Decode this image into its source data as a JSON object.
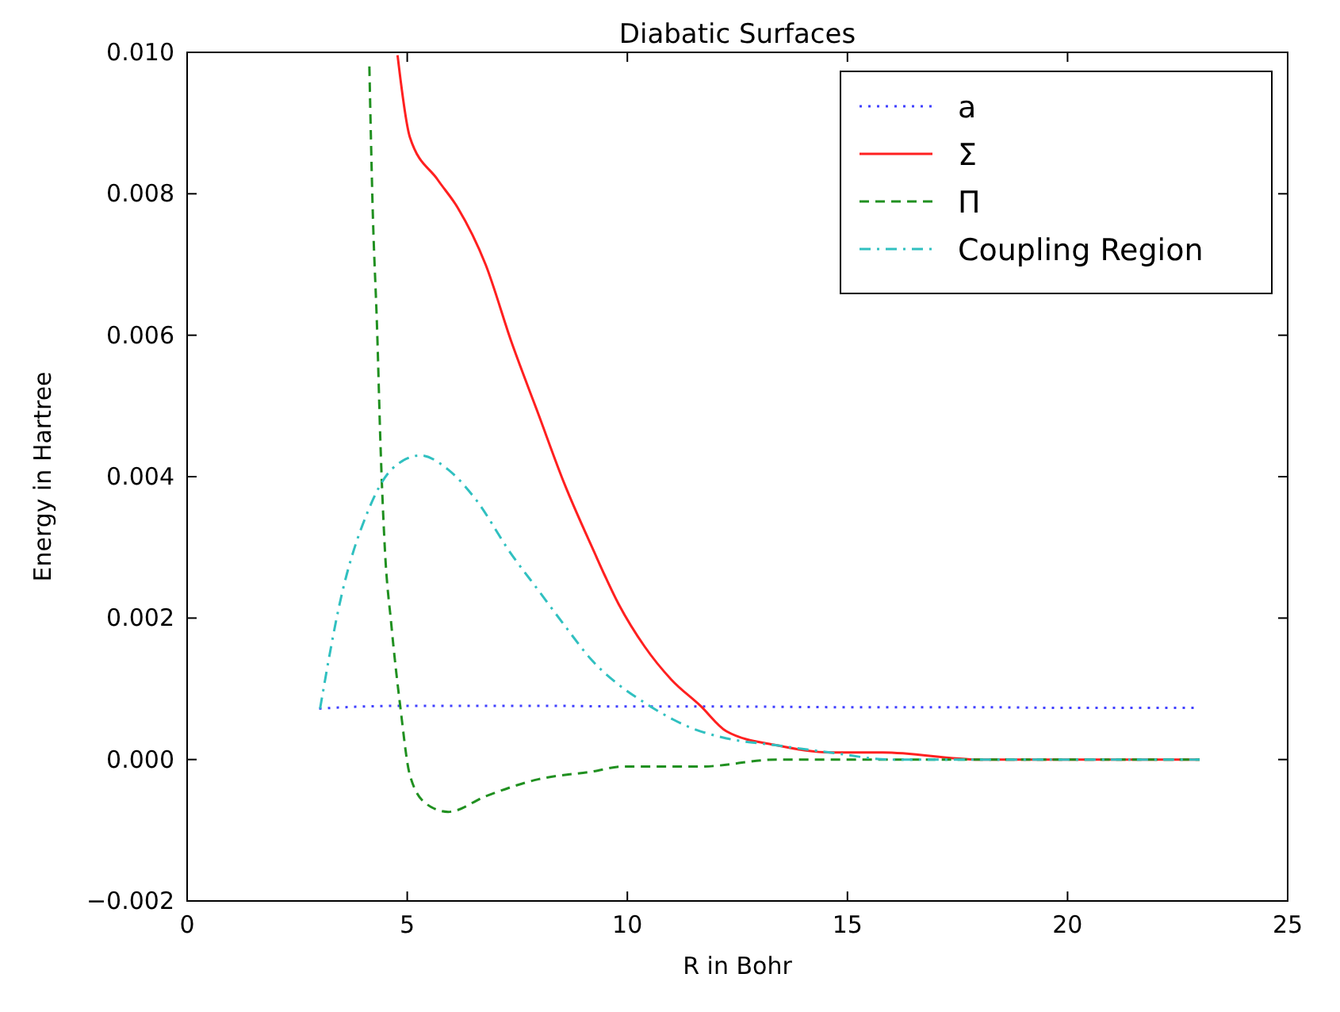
{
  "chart_data": {
    "type": "line",
    "title": "Diabatic Surfaces",
    "xlabel": "R in Bohr",
    "ylabel": "Energy in Hartree",
    "xlim": [
      0,
      25
    ],
    "xticks": [
      0,
      5,
      10,
      15,
      20,
      25
    ],
    "ylim": [
      -0.002,
      0.01
    ],
    "yticks": [
      {
        "value": -0.002,
        "label": "−0.002"
      },
      {
        "value": 0,
        "label": "0.000"
      },
      {
        "value": 0.002,
        "label": "0.002"
      },
      {
        "value": 0.004,
        "label": "0.004"
      },
      {
        "value": 0.006,
        "label": "0.006"
      },
      {
        "value": 0.008,
        "label": "0.008"
      },
      {
        "value": 0.01,
        "label": "0.010"
      }
    ],
    "grid": false,
    "legend": "top right",
    "marker": "none",
    "series": [
      {
        "name": "a",
        "color": "#4040ff",
        "line_style": "dotted",
        "x": [
          3,
          4,
          5,
          6,
          8,
          10,
          12,
          15,
          18,
          20,
          23
        ],
        "values": [
          0.00072,
          0.00075,
          0.00076,
          0.00076,
          0.00076,
          0.00075,
          0.00075,
          0.00074,
          0.00074,
          0.00073,
          0.00073
        ]
      },
      {
        "name": "Σ",
        "color": "#ff2020",
        "line_style": "solid",
        "x": [
          4.78,
          5.06,
          5.69,
          6.15,
          6.78,
          7.37,
          7.97,
          8.57,
          9.2,
          9.8,
          10.39,
          11,
          11.66,
          12.25,
          13.4,
          14.6,
          15.8,
          18,
          20,
          23
        ],
        "values": [
          0.00996,
          0.0088,
          0.0082,
          0.0078,
          0.007,
          0.0059,
          0.0049,
          0.0039,
          0.003,
          0.0022,
          0.0016,
          0.00113,
          0.00076,
          0.0004,
          0.0002,
          0.0001,
          0.0001,
          0,
          0,
          0
        ]
      },
      {
        "name": "Π",
        "color": "#209020",
        "line_style": "dashed",
        "x": [
          4.14,
          4.21,
          4.32,
          4.39,
          4.49,
          4.64,
          4.84,
          5.06,
          5.44,
          5.93,
          6.78,
          7.97,
          9.2,
          9.9,
          11.66,
          13.4,
          15.8,
          18,
          20,
          23
        ],
        "values": [
          0.0098,
          0.0079,
          0.006,
          0.0045,
          0.003,
          0.0019,
          0.00076,
          -0.00022,
          -0.00063,
          -0.00074,
          -0.00052,
          -0.00028,
          -0.00017,
          -0.0001,
          -0.0001,
          0,
          0,
          0,
          0,
          0
        ]
      },
      {
        "name": "Coupling Region",
        "color": "#30c0c0",
        "line_style": "dashdot",
        "x": [
          3.02,
          3.5,
          4.1,
          4.64,
          5.3,
          5.93,
          6.53,
          7.37,
          7.97,
          8.57,
          9.2,
          9.8,
          10.4,
          11.06,
          11.4,
          12.25,
          13.4,
          14.6,
          16,
          18,
          20,
          23
        ],
        "values": [
          0.00072,
          0.0023,
          0.0035,
          0.0041,
          0.0043,
          0.0041,
          0.0037,
          0.0029,
          0.0024,
          0.0019,
          0.0014,
          0.00106,
          0.0008,
          0.00056,
          0.00046,
          0.0003,
          0.0002,
          0.0001,
          0,
          0,
          0,
          0
        ]
      }
    ]
  }
}
